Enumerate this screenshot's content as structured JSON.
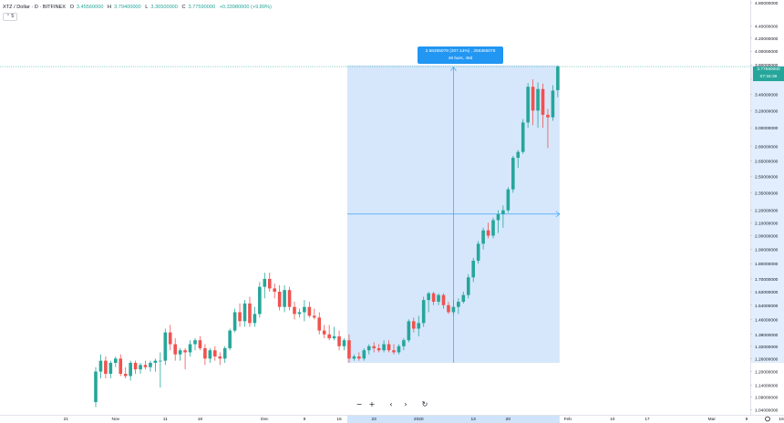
{
  "header": {
    "symbol": "XTZ / Dollar · D · BITFINEX",
    "open": "O",
    "open_val": "3.45560000",
    "high": "H",
    "high_val": "3.79400000",
    "low": "L",
    "low_val": "3.36500000",
    "close": "C",
    "close_val": "3.77590000",
    "change": "+0.33980000 (+9.89%)"
  },
  "collapse_label": "⌃ 5",
  "measure_tooltip": {
    "line1": "2.56365078 (207.14%) , 256365078",
    "line2": "48 bars, 48d"
  },
  "price_boxes": {
    "last": "3.77590000",
    "countdown": "07:34:39"
  },
  "toolbar": {
    "zoom_out": "−",
    "zoom_in": "+",
    "scroll_left": "‹",
    "scroll_right": "›",
    "reset": "↻"
  },
  "colors": {
    "up": "#26a69a",
    "down": "#ef5350",
    "measure_fill": "#cfe3fb",
    "measure_line": "#2196f3",
    "price_line": "#26a69a"
  },
  "chart_data": {
    "type": "candlestick",
    "y_scale": "log",
    "ylim": [
      1.02,
      4.8
    ],
    "y_ticks": [
      "1.04000000",
      "1.09000000",
      "1.14000000",
      "1.20000000",
      "1.26000000",
      "1.32000000",
      "1.38000000",
      "1.46000000",
      "1.54000000",
      "1.62000000",
      "1.70000000",
      "1.80000000",
      "1.90000000",
      "2.00000000",
      "2.10000000",
      "2.20000000",
      "2.35000000",
      "2.50000000",
      "2.65000000",
      "2.80000000",
      "3.00000000",
      "3.20000000",
      "3.40000000",
      "3.60000000",
      "3.80000000",
      "4.00000000",
      "4.20000000",
      "4.40000000",
      "4.80000000"
    ],
    "x_ticks": [
      {
        "label": "21",
        "bar": -6
      },
      {
        "label": "Nov",
        "bar": 4
      },
      {
        "label": "11",
        "bar": 14
      },
      {
        "label": "18",
        "bar": 21
      },
      {
        "label": "Dec",
        "bar": 34
      },
      {
        "label": "9",
        "bar": 42
      },
      {
        "label": "16",
        "bar": 49
      },
      {
        "label": "23",
        "bar": 56
      },
      {
        "label": "2020",
        "bar": 65
      },
      {
        "label": "13",
        "bar": 76
      },
      {
        "label": "20",
        "bar": 83
      },
      {
        "label": "Feb",
        "bar": 95
      },
      {
        "label": "10",
        "bar": 104
      },
      {
        "label": "17",
        "bar": 111
      },
      {
        "label": "Mar",
        "bar": 124
      },
      {
        "label": "9",
        "bar": 131
      },
      {
        "label": "16",
        "bar": 138
      },
      {
        "label": "23",
        "bar": 145
      }
    ],
    "candles": [
      [
        1.07,
        1.22,
        1.05,
        1.2
      ],
      [
        1.2,
        1.28,
        1.17,
        1.25
      ],
      [
        1.25,
        1.27,
        1.17,
        1.19
      ],
      [
        1.19,
        1.25,
        1.17,
        1.24
      ],
      [
        1.24,
        1.27,
        1.22,
        1.26
      ],
      [
        1.26,
        1.28,
        1.18,
        1.19
      ],
      [
        1.19,
        1.22,
        1.17,
        1.18
      ],
      [
        1.18,
        1.25,
        1.16,
        1.24
      ],
      [
        1.24,
        1.25,
        1.19,
        1.21
      ],
      [
        1.21,
        1.24,
        1.19,
        1.23
      ],
      [
        1.23,
        1.25,
        1.21,
        1.22
      ],
      [
        1.22,
        1.25,
        1.2,
        1.24
      ],
      [
        1.24,
        1.26,
        1.2,
        1.25
      ],
      [
        1.25,
        1.29,
        1.13,
        1.25
      ],
      [
        1.25,
        1.41,
        1.23,
        1.39
      ],
      [
        1.39,
        1.43,
        1.3,
        1.33
      ],
      [
        1.33,
        1.36,
        1.25,
        1.28
      ],
      [
        1.28,
        1.31,
        1.25,
        1.3
      ],
      [
        1.3,
        1.31,
        1.21,
        1.29
      ],
      [
        1.29,
        1.35,
        1.27,
        1.33
      ],
      [
        1.33,
        1.36,
        1.3,
        1.35
      ],
      [
        1.35,
        1.37,
        1.3,
        1.31
      ],
      [
        1.31,
        1.33,
        1.23,
        1.26
      ],
      [
        1.26,
        1.31,
        1.24,
        1.3
      ],
      [
        1.3,
        1.32,
        1.25,
        1.27
      ],
      [
        1.27,
        1.29,
        1.23,
        1.26
      ],
      [
        1.26,
        1.32,
        1.24,
        1.31
      ],
      [
        1.31,
        1.41,
        1.3,
        1.4
      ],
      [
        1.4,
        1.52,
        1.39,
        1.5
      ],
      [
        1.5,
        1.55,
        1.42,
        1.45
      ],
      [
        1.45,
        1.57,
        1.42,
        1.55
      ],
      [
        1.55,
        1.59,
        1.42,
        1.44
      ],
      [
        1.44,
        1.53,
        1.42,
        1.49
      ],
      [
        1.49,
        1.68,
        1.47,
        1.65
      ],
      [
        1.65,
        1.74,
        1.58,
        1.7
      ],
      [
        1.7,
        1.74,
        1.62,
        1.64
      ],
      [
        1.64,
        1.67,
        1.58,
        1.62
      ],
      [
        1.62,
        1.66,
        1.51,
        1.53
      ],
      [
        1.53,
        1.66,
        1.5,
        1.63
      ],
      [
        1.63,
        1.65,
        1.51,
        1.53
      ],
      [
        1.53,
        1.56,
        1.46,
        1.49
      ],
      [
        1.49,
        1.52,
        1.47,
        1.5
      ],
      [
        1.5,
        1.57,
        1.45,
        1.53
      ],
      [
        1.53,
        1.56,
        1.47,
        1.48
      ],
      [
        1.48,
        1.52,
        1.46,
        1.47
      ],
      [
        1.47,
        1.5,
        1.38,
        1.4
      ],
      [
        1.4,
        1.43,
        1.36,
        1.38
      ],
      [
        1.38,
        1.43,
        1.35,
        1.36
      ],
      [
        1.36,
        1.42,
        1.35,
        1.37
      ],
      [
        1.37,
        1.4,
        1.3,
        1.32
      ],
      [
        1.32,
        1.36,
        1.3,
        1.35
      ],
      [
        1.35,
        1.38,
        1.24,
        1.26
      ],
      [
        1.26,
        1.28,
        1.25,
        1.27
      ],
      [
        1.27,
        1.29,
        1.25,
        1.26
      ],
      [
        1.26,
        1.31,
        1.25,
        1.3
      ],
      [
        1.3,
        1.33,
        1.28,
        1.32
      ],
      [
        1.32,
        1.34,
        1.29,
        1.31
      ],
      [
        1.31,
        1.33,
        1.29,
        1.3
      ],
      [
        1.3,
        1.35,
        1.29,
        1.33
      ],
      [
        1.33,
        1.35,
        1.29,
        1.3
      ],
      [
        1.3,
        1.33,
        1.28,
        1.29
      ],
      [
        1.29,
        1.33,
        1.28,
        1.32
      ],
      [
        1.32,
        1.36,
        1.3,
        1.35
      ],
      [
        1.35,
        1.46,
        1.34,
        1.45
      ],
      [
        1.45,
        1.47,
        1.39,
        1.41
      ],
      [
        1.41,
        1.48,
        1.37,
        1.44
      ],
      [
        1.44,
        1.59,
        1.42,
        1.57
      ],
      [
        1.57,
        1.62,
        1.5,
        1.61
      ],
      [
        1.61,
        1.62,
        1.54,
        1.56
      ],
      [
        1.56,
        1.61,
        1.54,
        1.6
      ],
      [
        1.6,
        1.61,
        1.52,
        1.54
      ],
      [
        1.54,
        1.56,
        1.49,
        1.5
      ],
      [
        1.5,
        1.57,
        1.48,
        1.53
      ],
      [
        1.53,
        1.58,
        1.49,
        1.56
      ],
      [
        1.56,
        1.62,
        1.55,
        1.6
      ],
      [
        1.6,
        1.73,
        1.58,
        1.71
      ],
      [
        1.71,
        1.84,
        1.68,
        1.82
      ],
      [
        1.82,
        1.96,
        1.8,
        1.94
      ],
      [
        1.94,
        2.06,
        1.9,
        2.04
      ],
      [
        2.04,
        2.1,
        1.98,
        2.0
      ],
      [
        2.0,
        2.14,
        1.98,
        2.12
      ],
      [
        2.12,
        2.2,
        2.02,
        2.17
      ],
      [
        2.17,
        2.24,
        2.06,
        2.2
      ],
      [
        2.2,
        2.4,
        2.18,
        2.38
      ],
      [
        2.38,
        2.7,
        2.35,
        2.68
      ],
      [
        2.68,
        2.76,
        2.58,
        2.74
      ],
      [
        2.74,
        3.1,
        2.72,
        3.06
      ],
      [
        3.06,
        3.55,
        3.0,
        3.5
      ],
      [
        3.5,
        3.6,
        3.03,
        3.2
      ],
      [
        3.2,
        3.56,
        3.0,
        3.47
      ],
      [
        3.47,
        3.54,
        3.0,
        3.15
      ],
      [
        3.15,
        3.22,
        2.78,
        3.12
      ],
      [
        3.12,
        3.52,
        3.08,
        3.45
      ],
      [
        3.4559,
        3.794,
        3.365,
        3.7759
      ]
    ]
  }
}
